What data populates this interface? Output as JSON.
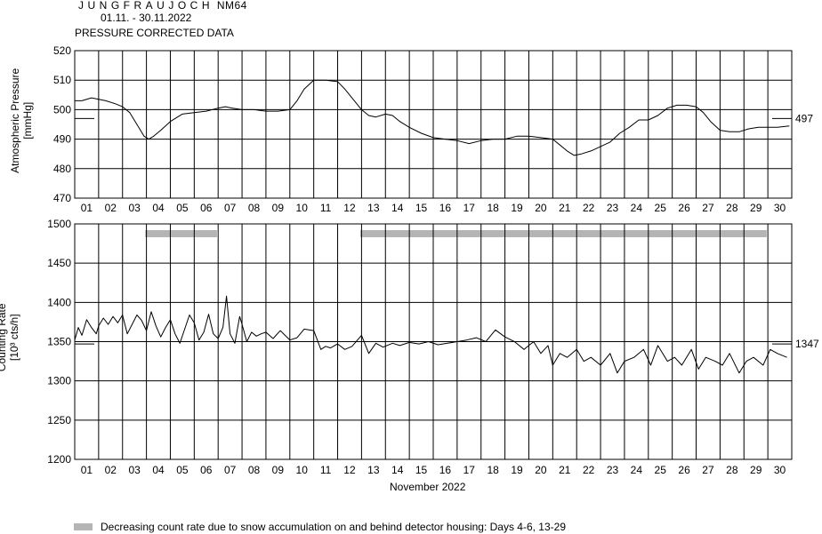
{
  "header": {
    "station_name": "JUNGFRAUJOCH",
    "station_code": "NM64",
    "date_range": "01.11. - 30.11.2022",
    "subtitle": "PRESSURE CORRECTED DATA"
  },
  "legend": {
    "text": "Decreasing count rate due to snow accumulation on and behind detector housing: Days 4-6, 13-29",
    "color": "#b4b4b4"
  },
  "chart_data": [
    {
      "type": "line",
      "ylabel_line1": "Atmospheric Pressure",
      "ylabel_line2": "[mmHg]",
      "ylim": [
        470,
        520
      ],
      "yticks": [
        "470",
        "480",
        "490",
        "500",
        "510",
        "520"
      ],
      "xlim": [
        1,
        31
      ],
      "xticks": [
        "01",
        "02",
        "03",
        "04",
        "05",
        "06",
        "07",
        "08",
        "09",
        "10",
        "11",
        "12",
        "13",
        "14",
        "15",
        "16",
        "17",
        "18",
        "19",
        "20",
        "21",
        "22",
        "23",
        "24",
        "25",
        "26",
        "27",
        "28",
        "29",
        "30"
      ],
      "grid": true,
      "reference_value": 497,
      "reference_label": "497",
      "series": [
        {
          "x": [
            1.0,
            1.3,
            1.7,
            2.0,
            2.3,
            2.7,
            3.0,
            3.3,
            3.6,
            3.9,
            4.1,
            4.3,
            4.6,
            5.0,
            5.5,
            6.0,
            6.5,
            7.0,
            7.3,
            7.6,
            8.0,
            8.5,
            9.0,
            9.5,
            10.0,
            10.3,
            10.6,
            11.0,
            11.5,
            12.0,
            12.3,
            12.7,
            13.0,
            13.3,
            13.6,
            14.0,
            14.3,
            14.6,
            15.0,
            15.5,
            16.0,
            16.5,
            17.0,
            17.5,
            18.0,
            18.5,
            19.0,
            19.5,
            20.0,
            20.5,
            21.0,
            21.3,
            21.6,
            21.9,
            22.2,
            22.6,
            23.0,
            23.4,
            23.8,
            24.2,
            24.6,
            25.0,
            25.4,
            25.8,
            26.2,
            26.6,
            27.0,
            27.3,
            27.6,
            28.0,
            28.4,
            28.8,
            29.2,
            29.6,
            30.0,
            30.4,
            30.9
          ],
          "y": [
            503,
            503,
            504,
            503.5,
            503,
            502,
            501,
            499,
            495,
            491,
            490,
            491,
            493,
            496,
            498.5,
            499,
            499.5,
            500.5,
            501,
            500.5,
            500,
            500,
            499.5,
            499.5,
            500,
            503,
            507,
            510,
            510,
            509.5,
            507,
            503,
            500,
            498,
            497.5,
            498.5,
            498,
            496,
            494,
            492,
            490.5,
            490,
            489.5,
            488.5,
            489.5,
            490,
            490,
            491,
            491,
            490.5,
            490,
            488,
            486,
            484.5,
            485,
            486,
            487.5,
            489,
            492,
            494,
            496.5,
            496.5,
            498,
            500.5,
            501.5,
            501.5,
            501,
            499,
            496,
            493,
            492.5,
            492.5,
            493.5,
            494,
            494,
            494,
            494.5
          ]
        }
      ]
    },
    {
      "type": "line",
      "ylabel_line1": "Counting Rate",
      "ylabel_line2": "[10³ cts/h]",
      "ylim": [
        1200,
        1500
      ],
      "yticks": [
        "1200",
        "1250",
        "1300",
        "1350",
        "1400",
        "1450",
        "1500"
      ],
      "xlim": [
        1,
        31
      ],
      "xticks": [
        "01",
        "02",
        "03",
        "04",
        "05",
        "06",
        "07",
        "08",
        "09",
        "10",
        "11",
        "12",
        "13",
        "14",
        "15",
        "16",
        "17",
        "18",
        "19",
        "20",
        "21",
        "22",
        "23",
        "24",
        "25",
        "26",
        "27",
        "28",
        "29",
        "30"
      ],
      "xlabel": "November 2022",
      "grid": true,
      "reference_value": 1347,
      "reference_label": "1347",
      "snow_periods": [
        [
          3.95,
          6.95
        ],
        [
          12.95,
          29.95
        ]
      ],
      "series": [
        {
          "x": [
            1.0,
            1.15,
            1.3,
            1.5,
            1.7,
            1.9,
            2.0,
            2.2,
            2.4,
            2.6,
            2.8,
            3.0,
            3.2,
            3.4,
            3.6,
            3.8,
            4.0,
            4.2,
            4.4,
            4.6,
            4.8,
            5.0,
            5.2,
            5.4,
            5.6,
            5.8,
            6.0,
            6.2,
            6.4,
            6.6,
            6.8,
            7.0,
            7.2,
            7.35,
            7.5,
            7.7,
            7.9,
            8.0,
            8.2,
            8.4,
            8.6,
            8.8,
            9.0,
            9.3,
            9.6,
            10.0,
            10.3,
            10.6,
            11.0,
            11.3,
            11.5,
            11.7,
            12.0,
            12.3,
            12.6,
            13.0,
            13.3,
            13.6,
            13.9,
            14.3,
            14.6,
            15.0,
            15.4,
            15.8,
            16.2,
            16.6,
            17.0,
            17.4,
            17.8,
            18.2,
            18.6,
            19.0,
            19.4,
            19.8,
            20.2,
            20.5,
            20.8,
            21.0,
            21.3,
            21.6,
            22.0,
            22.3,
            22.6,
            23.0,
            23.4,
            23.7,
            24.0,
            24.4,
            24.8,
            25.1,
            25.4,
            25.8,
            26.1,
            26.4,
            26.8,
            27.1,
            27.4,
            27.8,
            28.1,
            28.4,
            28.8,
            29.1,
            29.4,
            29.8,
            30.1,
            30.4,
            30.8
          ],
          "y": [
            1352,
            1368,
            1358,
            1378,
            1368,
            1360,
            1370,
            1380,
            1372,
            1382,
            1374,
            1384,
            1360,
            1372,
            1384,
            1377,
            1364,
            1388,
            1370,
            1356,
            1368,
            1378,
            1360,
            1348,
            1366,
            1384,
            1374,
            1352,
            1362,
            1385,
            1360,
            1354,
            1368,
            1408,
            1360,
            1348,
            1382,
            1372,
            1350,
            1362,
            1357,
            1360,
            1362,
            1354,
            1364,
            1352,
            1355,
            1366,
            1364,
            1340,
            1344,
            1342,
            1347,
            1340,
            1344,
            1358,
            1335,
            1348,
            1343,
            1348,
            1345,
            1349,
            1347,
            1350,
            1346,
            1348,
            1350,
            1352,
            1355,
            1350,
            1365,
            1356,
            1350,
            1340,
            1350,
            1335,
            1345,
            1320,
            1335,
            1330,
            1340,
            1325,
            1330,
            1320,
            1335,
            1310,
            1325,
            1330,
            1340,
            1320,
            1345,
            1325,
            1330,
            1320,
            1340,
            1315,
            1330,
            1325,
            1320,
            1335,
            1310,
            1325,
            1330,
            1320,
            1340,
            1335,
            1330
          ]
        }
      ]
    }
  ]
}
